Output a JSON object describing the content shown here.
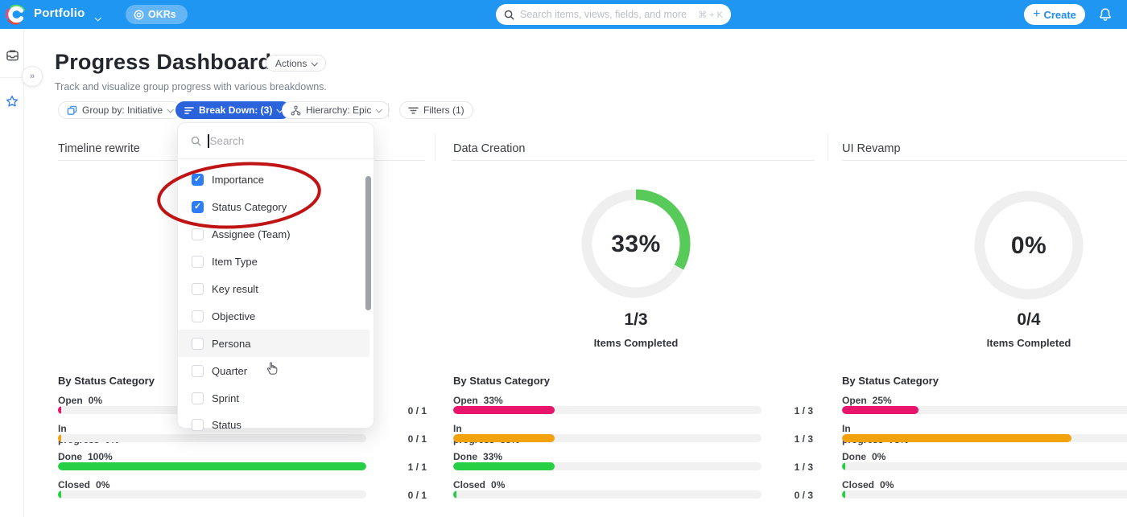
{
  "topbar": {
    "workspace": "Portfolio",
    "okrs_label": "OKRs",
    "search_placeholder": "Search items, views, fields, and more",
    "search_shortcut": "⌘ + K",
    "create_label": "Create"
  },
  "sidebar": {
    "collapse_label": "»"
  },
  "header": {
    "title": "Progress Dashboard",
    "actions_label": "Actions",
    "subtitle": "Track and visualize group progress with various breakdowns."
  },
  "toolbar": {
    "group_by": "Group by: Initiative",
    "break_down": "Break Down: (3)",
    "hierarchy": "Hierarchy: Epic",
    "filters": "Filters (1)"
  },
  "dropdown": {
    "search_placeholder": "Search",
    "items": [
      {
        "label": "Importance",
        "checked": true
      },
      {
        "label": "Status Category",
        "checked": true
      },
      {
        "label": "Assignee (Team)",
        "checked": false
      },
      {
        "label": "Item Type",
        "checked": false
      },
      {
        "label": "Key result",
        "checked": false
      },
      {
        "label": "Objective",
        "checked": false
      },
      {
        "label": "Persona",
        "checked": false,
        "hover": true
      },
      {
        "label": "Quarter",
        "checked": false
      },
      {
        "label": "Sprint",
        "checked": false
      },
      {
        "label": "Status",
        "checked": false
      }
    ]
  },
  "columns": [
    {
      "title": "Timeline rewrite",
      "status": {
        "title": "By Status Category",
        "rows": [
          {
            "label": "Open",
            "pct": "0%",
            "value": 0,
            "color": "pink",
            "fraction": "0 / 1"
          },
          {
            "label": "In progress",
            "pct": "0%",
            "value": 0,
            "color": "orange",
            "fraction": "0 / 1"
          },
          {
            "label": "Done",
            "pct": "100%",
            "value": 100,
            "color": "green",
            "fraction": "1 / 1"
          },
          {
            "label": "Closed",
            "pct": "0%",
            "value": 0,
            "color": "green",
            "fraction": "0 / 1"
          }
        ]
      }
    },
    {
      "title": "Data Creation",
      "donut": {
        "pct": "33%",
        "value": 33,
        "fraction": "1/3",
        "caption": "Items Completed"
      },
      "status": {
        "title": "By Status Category",
        "rows": [
          {
            "label": "Open",
            "pct": "33%",
            "value": 33,
            "color": "pink",
            "fraction": "1 / 3"
          },
          {
            "label": "In progress",
            "pct": "33%",
            "value": 33,
            "color": "orange",
            "fraction": "1 / 3"
          },
          {
            "label": "Done",
            "pct": "33%",
            "value": 33,
            "color": "green",
            "fraction": "1 / 3"
          },
          {
            "label": "Closed",
            "pct": "0%",
            "value": 0,
            "color": "green",
            "fraction": "0 / 3"
          }
        ]
      }
    },
    {
      "title": "UI Revamp",
      "donut": {
        "pct": "0%",
        "value": 0,
        "fraction": "0/4",
        "caption": "Items Completed"
      },
      "status": {
        "title": "By Status Category",
        "rows": [
          {
            "label": "Open",
            "pct": "25%",
            "value": 25,
            "color": "pink",
            "fraction": ""
          },
          {
            "label": "In progress",
            "pct": "75%",
            "value": 75,
            "color": "orange",
            "fraction": ""
          },
          {
            "label": "Done",
            "pct": "0%",
            "value": 0,
            "color": "green",
            "fraction": ""
          },
          {
            "label": "Closed",
            "pct": "0%",
            "value": 0,
            "color": "green",
            "fraction": ""
          }
        ]
      }
    }
  ],
  "colors": {
    "pink": "#e9146b",
    "orange": "#f2a20d",
    "green": "#26cf43",
    "donut_green": "#58ca5a",
    "donut_track": "#efefef",
    "topbar_blue": "#2096f3",
    "breakdown_blue": "#2b63dd",
    "checkbox_blue": "#2e7cf6",
    "annotation_red": "#c01414"
  },
  "chart_data": [
    {
      "type": "bar",
      "group": "Timeline rewrite",
      "categories": [
        "Open",
        "In progress",
        "Done",
        "Closed"
      ],
      "values": [
        0,
        0,
        100,
        0
      ],
      "fractions": [
        "0 / 1",
        "0 / 1",
        "1 / 1",
        "0 / 1"
      ],
      "title": "By Status Category"
    },
    {
      "type": "pie",
      "group": "Data Creation",
      "completed_pct": 33,
      "completed_fraction": "1/3",
      "caption": "Items Completed"
    },
    {
      "type": "bar",
      "group": "Data Creation",
      "categories": [
        "Open",
        "In progress",
        "Done",
        "Closed"
      ],
      "values": [
        33,
        33,
        33,
        0
      ],
      "fractions": [
        "1 / 3",
        "1 / 3",
        "1 / 3",
        "0 / 3"
      ],
      "title": "By Status Category"
    },
    {
      "type": "pie",
      "group": "UI Revamp",
      "completed_pct": 0,
      "completed_fraction": "0/4",
      "caption": "Items Completed"
    },
    {
      "type": "bar",
      "group": "UI Revamp",
      "categories": [
        "Open",
        "In progress",
        "Done",
        "Closed"
      ],
      "values": [
        25,
        75,
        0,
        0
      ],
      "title": "By Status Category"
    }
  ]
}
